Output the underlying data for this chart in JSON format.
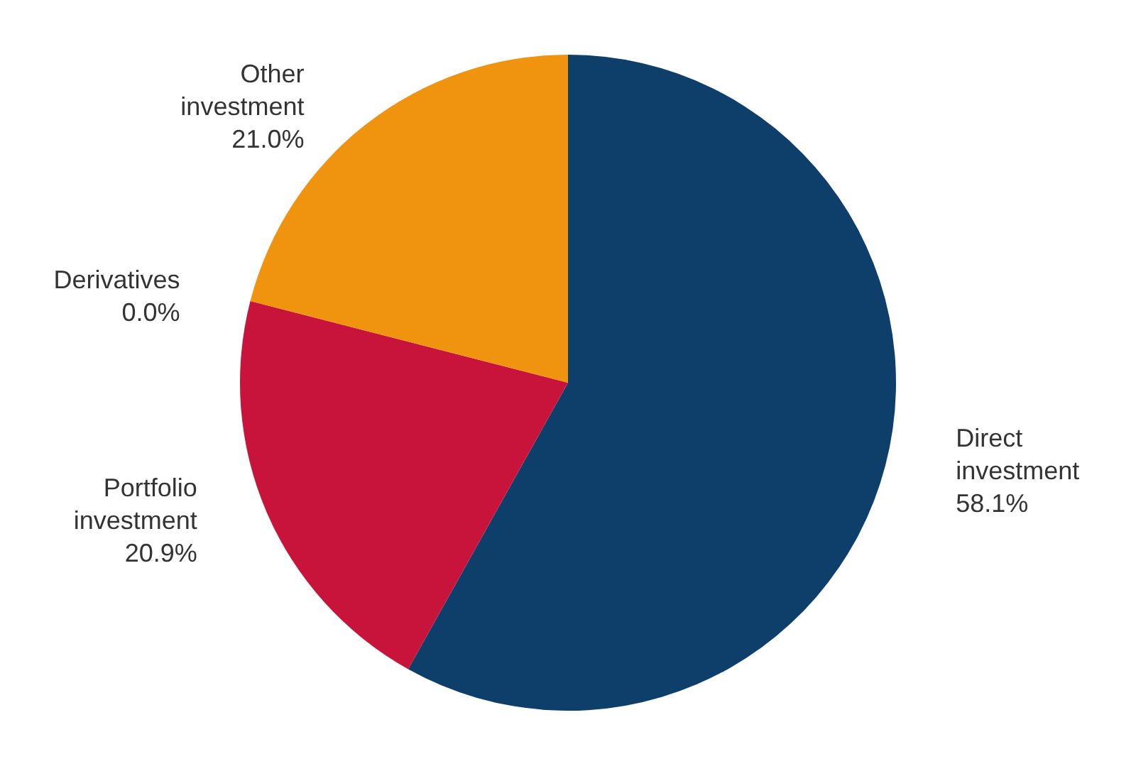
{
  "chart_data": {
    "type": "pie",
    "categories": [
      "Direct investment",
      "Portfolio investment",
      "Derivatives",
      "Other investment"
    ],
    "values": [
      58.1,
      20.9,
      0.0,
      21.0
    ],
    "value_labels": [
      "58.1%",
      "20.9%",
      "0.0%",
      "21.0%"
    ],
    "colors": [
      "#0e3f6b",
      "#c8143a",
      "#7f7f7f",
      "#f0930f"
    ],
    "legend": false
  }
}
